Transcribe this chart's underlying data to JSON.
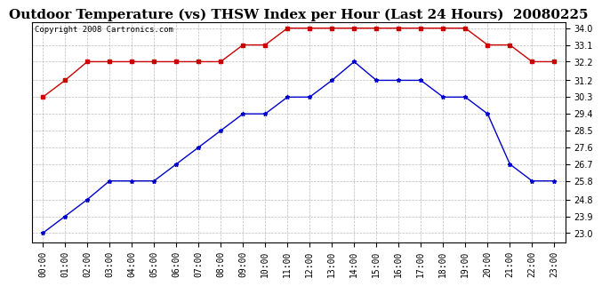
{
  "title": "Outdoor Temperature (vs) THSW Index per Hour (Last 24 Hours)  20080225",
  "copyright": "Copyright 2008 Cartronics.com",
  "hours": [
    "00:00",
    "01:00",
    "02:00",
    "03:00",
    "04:00",
    "05:00",
    "06:00",
    "07:00",
    "08:00",
    "09:00",
    "10:00",
    "11:00",
    "12:00",
    "13:00",
    "14:00",
    "15:00",
    "16:00",
    "17:00",
    "18:00",
    "19:00",
    "20:00",
    "21:00",
    "22:00",
    "23:00"
  ],
  "red_data": [
    30.3,
    31.2,
    32.2,
    32.2,
    32.2,
    32.2,
    32.2,
    32.2,
    32.2,
    33.1,
    33.1,
    34.0,
    34.0,
    34.0,
    34.0,
    34.0,
    34.0,
    34.0,
    34.0,
    34.0,
    33.1,
    33.1,
    32.2,
    32.2
  ],
  "blue_data": [
    23.0,
    23.9,
    24.8,
    25.8,
    25.8,
    25.8,
    26.7,
    27.6,
    28.5,
    29.4,
    29.4,
    30.3,
    30.3,
    31.2,
    32.2,
    31.2,
    31.2,
    31.2,
    30.3,
    30.3,
    29.4,
    26.7,
    25.8,
    25.8
  ],
  "ylim_min": 23.0,
  "ylim_max": 34.0,
  "yticks": [
    23.0,
    23.9,
    24.8,
    25.8,
    26.7,
    27.6,
    28.5,
    29.4,
    30.3,
    31.2,
    32.2,
    33.1,
    34.0
  ],
  "red_color": "#cc0000",
  "blue_color": "#0000cc",
  "bg_color": "#ffffff",
  "grid_color": "#aaaaaa",
  "title_fontsize": 11,
  "tick_fontsize": 7,
  "copyright_fontsize": 6.5
}
